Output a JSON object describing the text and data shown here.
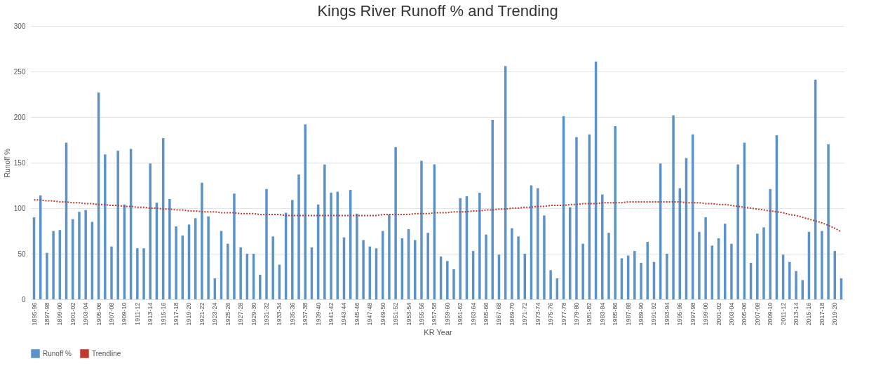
{
  "chart_data": {
    "type": "bar",
    "title": "Kings River Runoff % and Trending",
    "xlabel": "KR Year",
    "ylabel": "Runoff %",
    "categories": [
      "1895-96",
      null,
      "1897-98",
      null,
      "1899-00",
      null,
      "1901-02",
      null,
      "1903-04",
      null,
      "1905-06",
      null,
      "1907-08",
      null,
      "1909-10",
      null,
      "1911-12",
      null,
      "1913-14",
      null,
      "1915-16",
      null,
      "1917-18",
      null,
      "1919-20",
      null,
      "1921-22",
      null,
      "1923-24",
      null,
      "1925-26",
      null,
      "1927-28",
      null,
      "1929-30",
      null,
      "1931-32",
      null,
      "1933-34",
      null,
      "1935-36",
      null,
      "1937-38",
      null,
      "1939-40",
      null,
      "1941-42",
      null,
      "1943-44",
      null,
      "1945-46",
      null,
      "1947-48",
      null,
      "1949-50",
      null,
      "1951-52",
      null,
      "1953-54",
      null,
      "1955-56",
      null,
      "1957-58",
      null,
      "1959-60",
      null,
      "1961-62",
      null,
      "1963-64",
      null,
      "1965-66",
      null,
      "1967-68",
      null,
      "1969-70",
      null,
      "1971-72",
      null,
      "1973-74",
      null,
      "1975-76",
      null,
      "1977-78",
      null,
      "1979-80",
      null,
      "1981-82",
      null,
      "1983-84",
      null,
      "1985-86",
      null,
      "1987-88",
      null,
      "1989-90",
      null,
      "1991-92",
      null,
      "1993-94",
      null,
      "1995-96",
      null,
      "1997-98",
      null,
      "1999-00",
      null,
      "2001-02",
      null,
      "2003-04",
      null,
      "2005-06",
      null,
      "2007-08",
      null,
      "2009-10",
      null,
      "2011-12",
      null,
      "2013-14",
      null,
      "2015-16",
      null,
      "2017-18",
      null,
      "2019-20",
      null
    ],
    "series": [
      {
        "name": "Runoff %",
        "color": "#5b93c9",
        "values": [
          90,
          114,
          51,
          75,
          76,
          172,
          88,
          96,
          98,
          85,
          227,
          159,
          58,
          163,
          104,
          165,
          56,
          56,
          149,
          106,
          177,
          110,
          80,
          70,
          82,
          89,
          128,
          91,
          23,
          75,
          61,
          116,
          57,
          50,
          50,
          27,
          121,
          69,
          38,
          95,
          109,
          137,
          192,
          57,
          104,
          148,
          117,
          118,
          68,
          120,
          94,
          65,
          58,
          56,
          75,
          93,
          167,
          67,
          77,
          65,
          152,
          73,
          148,
          47,
          42,
          33,
          111,
          113,
          53,
          117,
          71,
          197,
          49,
          256,
          78,
          69,
          50,
          125,
          122,
          92,
          32,
          23,
          201,
          101,
          178,
          61,
          181,
          261,
          115,
          73,
          190,
          45,
          48,
          53,
          40,
          63,
          41,
          149,
          50,
          202,
          122,
          155,
          181,
          74,
          90,
          59,
          67,
          83,
          61,
          148,
          172,
          40,
          72,
          79,
          121,
          180,
          49,
          41,
          31,
          21,
          74,
          241,
          75,
          170,
          53,
          23
        ]
      },
      {
        "name": "Trendline",
        "type": "line",
        "line_style": "dotted",
        "color": "#c0392b",
        "values": [
          109,
          109,
          108,
          108,
          107,
          107,
          106,
          106,
          105,
          105,
          104,
          104,
          103,
          103,
          102,
          102,
          101,
          101,
          100,
          100,
          99,
          99,
          98,
          98,
          97,
          97,
          96,
          96,
          96,
          95,
          95,
          95,
          94,
          94,
          94,
          93,
          93,
          93,
          93,
          92,
          92,
          92,
          92,
          92,
          92,
          92,
          92,
          92,
          92,
          92,
          92,
          92,
          92,
          92,
          93,
          93,
          93,
          93,
          93,
          94,
          94,
          94,
          95,
          95,
          95,
          96,
          96,
          96,
          97,
          97,
          98,
          98,
          99,
          99,
          100,
          100,
          101,
          101,
          102,
          102,
          103,
          103,
          103,
          104,
          104,
          105,
          105,
          105,
          106,
          106,
          106,
          106,
          107,
          107,
          107,
          107,
          107,
          107,
          107,
          107,
          107,
          106,
          106,
          106,
          105,
          105,
          104,
          104,
          103,
          102,
          101,
          100,
          99,
          98,
          97,
          96,
          95,
          93,
          92,
          90,
          88,
          86,
          84,
          81,
          78,
          74
        ]
      }
    ],
    "ylim": [
      0,
      300
    ],
    "yticks": [
      0,
      50,
      100,
      150,
      200,
      250,
      300
    ],
    "grid": "y",
    "legend": "bottom"
  }
}
